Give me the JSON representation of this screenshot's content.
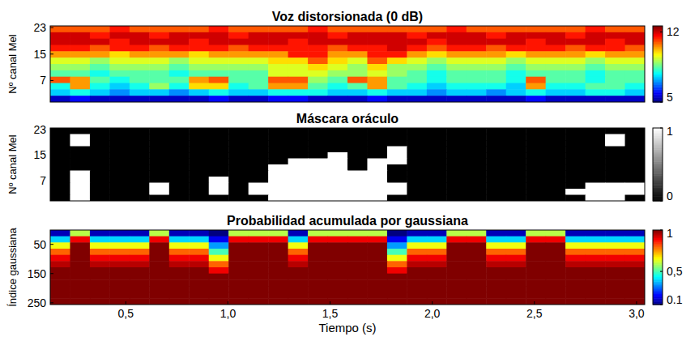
{
  "chart_data": [
    {
      "type": "heatmap",
      "title": "Voz distorsionada (0 dB)",
      "ylabel": "Nº canal Mel",
      "color": "jet",
      "tick_labels": "y",
      "xlim": [
        0.13,
        3.04
      ],
      "ylim": [
        0.5,
        23.5
      ],
      "yticks": [
        7,
        15,
        23
      ],
      "colorbar_range": [
        5,
        12.6
      ],
      "colorbar_ticks": [
        5,
        12
      ],
      "cells": [
        [
          11,
          11,
          11,
          11.5,
          11,
          11,
          11,
          11,
          11.5,
          11,
          11,
          11,
          11,
          11.5,
          11,
          11,
          11,
          11,
          11,
          11,
          11.5,
          11,
          11,
          11,
          11,
          11,
          11,
          11.5,
          11,
          11
        ],
        [
          12,
          12,
          11.5,
          12,
          12,
          11.5,
          12,
          12,
          12,
          11.5,
          12,
          12,
          12,
          12,
          11.5,
          12,
          12,
          12,
          11.5,
          12,
          12,
          12,
          11.5,
          12,
          12,
          12,
          11.5,
          12,
          12,
          12
        ],
        [
          12,
          12,
          12,
          11.5,
          12,
          12,
          12,
          11.5,
          12,
          12,
          12,
          12,
          11.5,
          12,
          12,
          12,
          12,
          12,
          12,
          11.5,
          12,
          12,
          12,
          12,
          11.5,
          12,
          12,
          12,
          11.5,
          12
        ],
        [
          11.5,
          11.5,
          11,
          11.5,
          11.5,
          11,
          11.5,
          11.5,
          11.5,
          11,
          11.5,
          11.5,
          11.5,
          11.5,
          11,
          11.5,
          11.5,
          12,
          11.5,
          11,
          11.5,
          11.5,
          11,
          11.5,
          11.5,
          11.5,
          11,
          11.5,
          11.5,
          11
        ],
        [
          10.5,
          10.5,
          10.5,
          10,
          10.5,
          10.5,
          10.5,
          10,
          10.5,
          10.5,
          10.5,
          10.5,
          11.5,
          11.5,
          10.5,
          10.5,
          11.5,
          11.5,
          10.5,
          10,
          10.5,
          10.5,
          10.5,
          10,
          10.5,
          10.5,
          10.5,
          10,
          10.5,
          10.5
        ],
        [
          9.5,
          9.5,
          9,
          9.5,
          9.5,
          9.5,
          9,
          9.5,
          9.5,
          9.5,
          9.5,
          10,
          10,
          11,
          10,
          9.5,
          11,
          10,
          9.5,
          9,
          9.5,
          9.5,
          9.5,
          9,
          9.5,
          9.5,
          9.5,
          9,
          9.5,
          9.5
        ],
        [
          9,
          9,
          8.5,
          9,
          9,
          9,
          8.5,
          9,
          9,
          9,
          9,
          9.5,
          9.5,
          10,
          9.5,
          9,
          10,
          9,
          9,
          8.5,
          9,
          9,
          9,
          8.5,
          9,
          9,
          9,
          8.5,
          9,
          9
        ],
        [
          8.5,
          8.5,
          8,
          8.5,
          8.5,
          8.5,
          8,
          8.5,
          8.5,
          8.5,
          8.5,
          9.5,
          9.5,
          9.5,
          9,
          9,
          9.5,
          9,
          8.5,
          8,
          8.5,
          8.5,
          8.5,
          8,
          8.5,
          8.5,
          8.5,
          8,
          8.5,
          8.5
        ],
        [
          11,
          10.5,
          8.5,
          8,
          8.5,
          8.5,
          8.5,
          10.5,
          11,
          8.5,
          8.5,
          11,
          11,
          9,
          8.5,
          11,
          10.5,
          8.5,
          8.5,
          8,
          8.5,
          8.5,
          8.5,
          8,
          11,
          8.5,
          8.5,
          8,
          8.5,
          8.5
        ],
        [
          8,
          10.5,
          8,
          7.5,
          8,
          9,
          8,
          10,
          10,
          8,
          8.5,
          10.5,
          10.5,
          8.5,
          8,
          8.5,
          10.5,
          8.5,
          8,
          7.5,
          8,
          8,
          8,
          7.5,
          10.5,
          8,
          8,
          8.5,
          8.5,
          8
        ],
        [
          7.5,
          8,
          7.5,
          7,
          7.5,
          7.5,
          7,
          7.5,
          8,
          7.5,
          7.5,
          8,
          8,
          8,
          7.5,
          7.5,
          8,
          7.5,
          7.5,
          7,
          7.5,
          7.5,
          7,
          7.5,
          8,
          7.5,
          7.5,
          8,
          8,
          7.5
        ],
        [
          5.5,
          6,
          5.5,
          5.5,
          5.5,
          5.5,
          5.5,
          5.5,
          6,
          5.5,
          5.5,
          6,
          6,
          5.5,
          5.5,
          5.5,
          6,
          5.5,
          5.5,
          5.5,
          5.5,
          5.5,
          5.5,
          5.5,
          6,
          5.5,
          5.5,
          5.5,
          5.5,
          5.5
        ]
      ]
    },
    {
      "type": "heatmap",
      "title": "Máscara oráculo",
      "ylabel": "Nº canal Mel",
      "color": "gray",
      "tick_labels": "y",
      "xlim": [
        0.13,
        3.04
      ],
      "ylim": [
        0.5,
        23.5
      ],
      "yticks": [
        7,
        15,
        23
      ],
      "colorbar_range": [
        0,
        1
      ],
      "colorbar_ticks": [
        0,
        1
      ],
      "cells": [
        [
          0,
          0,
          0,
          0,
          0,
          0,
          0,
          0,
          0,
          0,
          0,
          0,
          0,
          0,
          0,
          0,
          0,
          0,
          0,
          0,
          0,
          0,
          0,
          0,
          0,
          0,
          0,
          0,
          0,
          0
        ],
        [
          0,
          1,
          0,
          0,
          0,
          0,
          0,
          0,
          0,
          0,
          0,
          0,
          0,
          0,
          0,
          0,
          0,
          0,
          0,
          0,
          0,
          0,
          0,
          0,
          0,
          0,
          0,
          0,
          1,
          0
        ],
        [
          0,
          1,
          0,
          0,
          0,
          0,
          0,
          0,
          0,
          0,
          0,
          0,
          0,
          0,
          0,
          0,
          0,
          0,
          0,
          0,
          0,
          0,
          0,
          0,
          0,
          0,
          0,
          0,
          1,
          0
        ],
        [
          0,
          0,
          0,
          0,
          0,
          0,
          0,
          0,
          0,
          0,
          0,
          0,
          0,
          0,
          0,
          0,
          0,
          1,
          0,
          0,
          0,
          0,
          0,
          0,
          0,
          0,
          0,
          0,
          0,
          0
        ],
        [
          0,
          0,
          0,
          0,
          0,
          0,
          0,
          0,
          0,
          0,
          0,
          0,
          0,
          0,
          1,
          0,
          0,
          1,
          0,
          0,
          0,
          0,
          0,
          0,
          0,
          0,
          0,
          0,
          0,
          0
        ],
        [
          0,
          0,
          0,
          0,
          0,
          0,
          0,
          0,
          0,
          0,
          0,
          0,
          1,
          1,
          1,
          0,
          1,
          1,
          0,
          0,
          0,
          0,
          0,
          0,
          0,
          0,
          0,
          0,
          0,
          0
        ],
        [
          0,
          0,
          0,
          0,
          0,
          0,
          0,
          0,
          0,
          0,
          0,
          1,
          1,
          1,
          1,
          0,
          1,
          0,
          0,
          0,
          0,
          0,
          0,
          0,
          0,
          0,
          0,
          0,
          0,
          0
        ],
        [
          0,
          1,
          0,
          0,
          0,
          0,
          0,
          0,
          0,
          0,
          0,
          1,
          1,
          1,
          1,
          1,
          1,
          0,
          0,
          0,
          0,
          0,
          0,
          0,
          0,
          0,
          0,
          0,
          0,
          0
        ],
        [
          0,
          1,
          0,
          0,
          0,
          0,
          0,
          0,
          1,
          0,
          0,
          1,
          1,
          1,
          1,
          1,
          1,
          0,
          0,
          0,
          0,
          0,
          0,
          0,
          0,
          0,
          0,
          0,
          0,
          0
        ],
        [
          0,
          1,
          0,
          0,
          0,
          1,
          0,
          0,
          1,
          0,
          1,
          1,
          1,
          1,
          1,
          1,
          1,
          1,
          0,
          0,
          0,
          0,
          0,
          0,
          0,
          0,
          0,
          1,
          1,
          1
        ],
        [
          0,
          1,
          0,
          0,
          0,
          1,
          0,
          0,
          1,
          0,
          1,
          1,
          1,
          1,
          1,
          1,
          1,
          1,
          0,
          0,
          0,
          0,
          0,
          0,
          0,
          0,
          1,
          1,
          1,
          1
        ],
        [
          0,
          1,
          0,
          0,
          0,
          0,
          0,
          0,
          0,
          0,
          0,
          1,
          1,
          1,
          1,
          1,
          1,
          0,
          0,
          0,
          0,
          0,
          0,
          0,
          0,
          0,
          0,
          1,
          1,
          0
        ]
      ]
    },
    {
      "type": "heatmap",
      "title": "Probabilidad acumulada por gaussiana",
      "ylabel": "Índice gaussiana",
      "xlabel": "Tiempo (s)",
      "color": "jet",
      "xlim": [
        0.13,
        3.04
      ],
      "ylim": [
        256,
        1
      ],
      "yticks": [
        50,
        150,
        250
      ],
      "xticks": [
        {
          "value": 0.5,
          "label": "0,5"
        },
        {
          "value": 1,
          "label": "1,0"
        },
        {
          "value": 1.5,
          "label": "1,5"
        },
        {
          "value": 2,
          "label": "2,0"
        },
        {
          "value": 2.5,
          "label": "2,5"
        },
        {
          "value": 3,
          "label": "3,0"
        }
      ],
      "colorbar_range": [
        0.1,
        1
      ],
      "colorbar_ticks": [
        0.1,
        {
          "value": 0.5,
          "label": "0,5"
        },
        1
      ],
      "cells": [
        [
          0.15,
          0.6,
          0.15,
          0.15,
          0.15,
          0.6,
          0.15,
          0.15,
          0.1,
          0.6,
          0.6,
          0.6,
          0.15,
          0.6,
          0.6,
          0.6,
          0.6,
          0.1,
          0.15,
          0.15,
          0.6,
          0.6,
          0.15,
          0.15,
          0.6,
          0.6,
          0.15,
          0.15,
          0.15,
          0.15
        ],
        [
          0.4,
          0.9,
          0.4,
          0.4,
          0.4,
          0.9,
          0.4,
          0.4,
          0.2,
          0.9,
          0.9,
          0.9,
          0.4,
          0.9,
          0.9,
          0.9,
          0.9,
          0.2,
          0.4,
          0.4,
          0.9,
          0.9,
          0.4,
          0.4,
          0.9,
          0.9,
          0.4,
          0.4,
          0.4,
          0.4
        ],
        [
          0.65,
          1,
          0.65,
          0.65,
          0.65,
          1,
          0.65,
          0.65,
          0.35,
          1,
          1,
          1,
          0.65,
          1,
          1,
          1,
          1,
          0.35,
          0.65,
          0.65,
          1,
          1,
          0.65,
          0.65,
          1,
          1,
          0.65,
          0.65,
          0.65,
          0.65
        ],
        [
          0.8,
          1,
          0.8,
          0.8,
          0.8,
          1,
          0.8,
          0.8,
          0.5,
          1,
          1,
          1,
          0.8,
          1,
          1,
          1,
          1,
          0.5,
          0.8,
          0.8,
          1,
          1,
          0.8,
          0.8,
          1,
          1,
          0.8,
          0.8,
          0.8,
          0.8
        ],
        [
          0.9,
          1,
          0.9,
          0.9,
          0.9,
          1,
          0.9,
          0.9,
          0.65,
          1,
          1,
          1,
          0.9,
          1,
          1,
          1,
          1,
          0.65,
          0.9,
          0.9,
          1,
          1,
          0.9,
          0.9,
          1,
          1,
          0.9,
          0.9,
          0.9,
          0.9
        ],
        [
          0.95,
          1,
          0.95,
          0.95,
          0.95,
          1,
          0.95,
          0.95,
          0.8,
          1,
          1,
          1,
          0.95,
          1,
          1,
          1,
          1,
          0.8,
          0.95,
          0.95,
          1,
          1,
          0.95,
          0.95,
          1,
          1,
          0.95,
          0.95,
          0.95,
          0.95
        ],
        [
          1,
          1,
          1,
          1,
          1,
          1,
          1,
          1,
          0.9,
          1,
          1,
          1,
          1,
          1,
          1,
          1,
          1,
          0.9,
          1,
          1,
          1,
          1,
          1,
          1,
          1,
          1,
          1,
          1,
          1,
          1
        ],
        [
          1,
          1,
          1,
          1,
          1,
          1,
          1,
          1,
          1,
          1,
          1,
          1,
          1,
          1,
          1,
          1,
          1,
          1,
          1,
          1,
          1,
          1,
          1,
          1,
          1,
          1,
          1,
          1,
          1,
          1
        ],
        [
          1,
          1,
          1,
          1,
          1,
          1,
          1,
          1,
          1,
          1,
          1,
          1,
          1,
          1,
          1,
          1,
          1,
          1,
          1,
          1,
          1,
          1,
          1,
          1,
          1,
          1,
          1,
          1,
          1,
          1
        ],
        [
          1,
          1,
          1,
          1,
          1,
          1,
          1,
          1,
          1,
          1,
          1,
          1,
          1,
          1,
          1,
          1,
          1,
          1,
          1,
          1,
          1,
          1,
          1,
          1,
          1,
          1,
          1,
          1,
          1,
          1
        ],
        [
          1,
          1,
          1,
          1,
          1,
          1,
          1,
          1,
          1,
          1,
          1,
          1,
          1,
          1,
          1,
          1,
          1,
          1,
          1,
          1,
          1,
          1,
          1,
          1,
          1,
          1,
          1,
          1,
          1,
          1
        ],
        [
          1,
          1,
          1,
          1,
          1,
          1,
          1,
          1,
          1,
          1,
          1,
          1,
          1,
          1,
          1,
          1,
          1,
          1,
          1,
          1,
          1,
          1,
          1,
          1,
          1,
          1,
          1,
          1,
          1,
          1
        ]
      ]
    }
  ]
}
